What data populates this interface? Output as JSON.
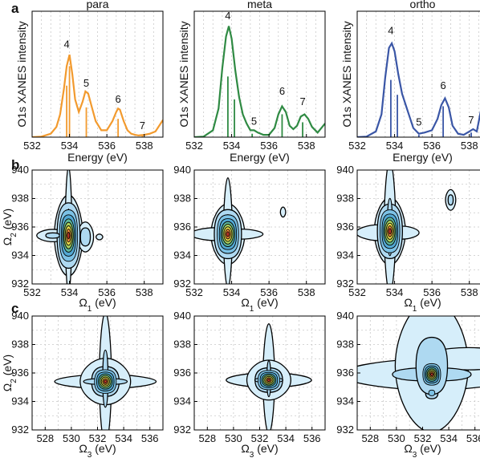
{
  "panel_letters": [
    "a",
    "b",
    "c"
  ],
  "chart_data": [
    {
      "type": "line",
      "panel": "a",
      "ylabel": "O1s XANES intensity",
      "xlabel": "Energy (eV)",
      "xlim": [
        532,
        539
      ],
      "xticks": [
        532,
        534,
        536,
        538
      ],
      "grid": true,
      "subplots": [
        {
          "title": "para",
          "color": "#f29a2e",
          "curve_x": [
            532,
            532.5,
            533,
            533.3,
            533.5,
            533.7,
            533.85,
            534,
            534.15,
            534.3,
            534.5,
            534.7,
            534.85,
            535,
            535.2,
            535.4,
            535.7,
            536,
            536.3,
            536.5,
            536.6,
            536.7,
            536.9,
            537.1,
            537.3,
            537.5,
            537.7,
            538,
            538.3,
            538.6,
            539
          ],
          "curve_y": [
            0.0,
            0.005,
            0.03,
            0.09,
            0.2,
            0.42,
            0.62,
            0.72,
            0.55,
            0.33,
            0.22,
            0.31,
            0.4,
            0.38,
            0.26,
            0.14,
            0.06,
            0.06,
            0.14,
            0.22,
            0.25,
            0.24,
            0.14,
            0.06,
            0.03,
            0.02,
            0.015,
            0.02,
            0.03,
            0.05,
            0.15
          ],
          "sticks": [
            {
              "x": 533.85,
              "h": 0.45
            },
            {
              "x": 534.0,
              "h": 0.62
            },
            {
              "x": 534.9,
              "h": 0.26
            },
            {
              "x": 536.6,
              "h": 0.16
            },
            {
              "x": 537.9,
              "h": 0.02
            }
          ],
          "peak_labels": [
            {
              "text": "4",
              "x": 533.85,
              "y": 0.78
            },
            {
              "text": "5",
              "x": 534.9,
              "y": 0.44
            },
            {
              "text": "6",
              "x": 536.6,
              "y": 0.3
            },
            {
              "text": "7",
              "x": 537.9,
              "y": 0.07
            }
          ]
        },
        {
          "title": "meta",
          "color": "#2f8a43",
          "curve_x": [
            532,
            532.5,
            533,
            533.3,
            533.5,
            533.7,
            533.85,
            534,
            534.2,
            534.4,
            534.6,
            534.8,
            535,
            535.2,
            535.4,
            535.7,
            536,
            536.3,
            536.5,
            536.7,
            536.9,
            537.1,
            537.3,
            537.5,
            537.7,
            537.9,
            538.1,
            538.3,
            538.6,
            539
          ],
          "curve_y": [
            0.0,
            0.005,
            0.06,
            0.25,
            0.6,
            0.88,
            0.97,
            0.86,
            0.58,
            0.35,
            0.2,
            0.12,
            0.06,
            0.06,
            0.04,
            0.02,
            0.02,
            0.08,
            0.2,
            0.27,
            0.22,
            0.1,
            0.07,
            0.1,
            0.18,
            0.2,
            0.16,
            0.09,
            0.04,
            0.12
          ],
          "sticks": [
            {
              "x": 533.8,
              "h": 0.53
            },
            {
              "x": 534.15,
              "h": 0.33
            },
            {
              "x": 535.1,
              "h": 0.03
            },
            {
              "x": 536.7,
              "h": 0.2
            },
            {
              "x": 537.8,
              "h": 0.13
            }
          ],
          "peak_labels": [
            {
              "text": "4",
              "x": 533.8,
              "y": 1.03
            },
            {
              "text": "5",
              "x": 535.2,
              "y": 0.11
            },
            {
              "text": "6",
              "x": 536.7,
              "y": 0.37
            },
            {
              "text": "7",
              "x": 537.8,
              "y": 0.28
            }
          ]
        },
        {
          "title": "ortho",
          "color": "#3a56a6",
          "curve_x": [
            532,
            532.5,
            533,
            533.3,
            533.5,
            533.7,
            533.85,
            534,
            534.2,
            534.4,
            534.6,
            534.8,
            535,
            535.3,
            535.6,
            536,
            536.3,
            536.5,
            536.7,
            536.9,
            537.1,
            537.4,
            537.7,
            538,
            538.2,
            538.4,
            538.7,
            539
          ],
          "curve_y": [
            0.0,
            0.005,
            0.05,
            0.2,
            0.52,
            0.78,
            0.82,
            0.75,
            0.55,
            0.38,
            0.28,
            0.18,
            0.08,
            0.03,
            0.04,
            0.06,
            0.16,
            0.28,
            0.34,
            0.26,
            0.1,
            0.03,
            0.02,
            0.05,
            0.07,
            0.05,
            0.3,
            0.55
          ],
          "sticks": [
            {
              "x": 533.8,
              "h": 0.5
            },
            {
              "x": 534.15,
              "h": 0.37
            },
            {
              "x": 535.3,
              "h": 0.02
            },
            {
              "x": 536.6,
              "h": 0.27
            },
            {
              "x": 538.1,
              "h": 0.04
            }
          ],
          "peak_labels": [
            {
              "text": "4",
              "x": 533.8,
              "y": 0.9
            },
            {
              "text": "5",
              "x": 535.3,
              "y": 0.1
            },
            {
              "text": "6",
              "x": 536.6,
              "y": 0.42
            },
            {
              "text": "7",
              "x": 538.1,
              "y": 0.12
            }
          ]
        }
      ]
    },
    {
      "type": "heatmap",
      "panel": "b",
      "ylabel": "Ω2 (eV)",
      "xlabel": "Ω1 (eV)",
      "xlim": [
        532,
        539
      ],
      "ylim": [
        932,
        940
      ],
      "xticks": [
        532,
        534,
        536,
        538
      ],
      "yticks": [
        932,
        934,
        936,
        938,
        940
      ],
      "grid": true,
      "subplots": [
        {
          "name": "para",
          "blobs": [
            {
              "cx": 533.95,
              "cy": 935.4,
              "sx": 0.32,
              "sy": 1.2,
              "a": 1.0
            },
            {
              "cx": 533.95,
              "cy": 935.8,
              "sx": 0.12,
              "sy": 3.0,
              "a": 0.18
            },
            {
              "cx": 533.1,
              "cy": 935.4,
              "sx": 0.55,
              "sy": 0.28,
              "a": 0.2
            },
            {
              "cx": 534.85,
              "cy": 935.3,
              "sx": 0.25,
              "sy": 0.6,
              "a": 0.28
            },
            {
              "cx": 535.6,
              "cy": 935.3,
              "sx": 0.18,
              "sy": 0.2,
              "a": 0.1
            }
          ]
        },
        {
          "name": "meta",
          "blobs": [
            {
              "cx": 533.8,
              "cy": 935.5,
              "sx": 0.38,
              "sy": 0.9,
              "a": 1.0
            },
            {
              "cx": 533.8,
              "cy": 935.6,
              "sx": 0.16,
              "sy": 2.6,
              "a": 0.18
            },
            {
              "cx": 533.2,
              "cy": 935.5,
              "sx": 1.1,
              "sy": 0.35,
              "a": 0.14
            },
            {
              "cx": 534.5,
              "cy": 935.5,
              "sx": 1.0,
              "sy": 0.3,
              "a": 0.12
            },
            {
              "cx": 536.75,
              "cy": 937.05,
              "sx": 0.12,
              "sy": 0.3,
              "a": 0.12
            }
          ]
        },
        {
          "name": "ortho",
          "blobs": [
            {
              "cx": 533.75,
              "cy": 935.7,
              "sx": 0.35,
              "sy": 1.0,
              "a": 1.0
            },
            {
              "cx": 533.75,
              "cy": 936.0,
              "sx": 0.2,
              "sy": 3.0,
              "a": 0.2
            },
            {
              "cx": 533.2,
              "cy": 935.6,
              "sx": 0.9,
              "sy": 0.4,
              "a": 0.16
            },
            {
              "cx": 534.4,
              "cy": 935.6,
              "sx": 0.7,
              "sy": 0.35,
              "a": 0.14
            },
            {
              "cx": 537.0,
              "cy": 937.9,
              "sx": 0.17,
              "sy": 0.45,
              "a": 0.22
            }
          ]
        }
      ]
    },
    {
      "type": "heatmap",
      "panel": "c",
      "ylabel": "Ω2 (eV)",
      "xlabel": "Ω3 (eV)",
      "xlim": [
        527,
        537
      ],
      "ylim": [
        932,
        940
      ],
      "xticks": [
        528,
        530,
        532,
        534,
        536
      ],
      "yticks": [
        932,
        934,
        936,
        938,
        940
      ],
      "grid": true,
      "subplots": [
        {
          "name": "para",
          "blobs": [
            {
              "cx": 532.6,
              "cy": 935.4,
              "sx": 0.55,
              "sy": 0.55,
              "a": 1.0
            },
            {
              "cx": 532.6,
              "cy": 935.4,
              "sx": 2.5,
              "sy": 0.32,
              "a": 0.2
            },
            {
              "cx": 532.6,
              "cy": 935.6,
              "sx": 0.3,
              "sy": 3.0,
              "a": 0.2
            },
            {
              "cx": 532.6,
              "cy": 935.4,
              "sx": 1.3,
              "sy": 1.1,
              "a": 0.18
            }
          ]
        },
        {
          "name": "meta",
          "blobs": [
            {
              "cx": 532.7,
              "cy": 935.5,
              "sx": 0.55,
              "sy": 0.45,
              "a": 1.0
            },
            {
              "cx": 532.7,
              "cy": 935.5,
              "sx": 2.2,
              "sy": 0.35,
              "a": 0.18
            },
            {
              "cx": 532.7,
              "cy": 935.6,
              "sx": 0.3,
              "sy": 2.6,
              "a": 0.18
            },
            {
              "cx": 532.7,
              "cy": 935.5,
              "sx": 1.2,
              "sy": 1.0,
              "a": 0.16
            }
          ]
        },
        {
          "name": "ortho",
          "blobs": [
            {
              "cx": 532.7,
              "cy": 935.9,
              "sx": 0.45,
              "sy": 0.5,
              "a": 1.0
            },
            {
              "cx": 532.7,
              "cy": 934.6,
              "sx": 0.35,
              "sy": 0.3,
              "a": 0.4
            },
            {
              "cx": 532.7,
              "cy": 935.9,
              "sx": 4.5,
              "sy": 0.7,
              "a": 0.2
            },
            {
              "cx": 532.7,
              "cy": 936.5,
              "sx": 1.8,
              "sy": 3.0,
              "a": 0.2
            },
            {
              "cx": 535.5,
              "cy": 937.0,
              "sx": 3.0,
              "sy": 0.6,
              "a": 0.14
            }
          ]
        }
      ]
    }
  ]
}
